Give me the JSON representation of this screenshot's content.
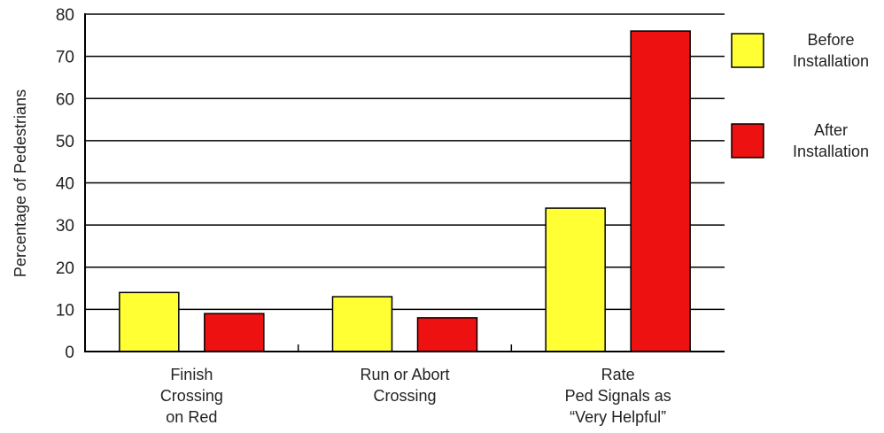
{
  "chart_data": {
    "type": "bar",
    "title": "",
    "xlabel": "",
    "ylabel": "Percentage of Pedestrians",
    "ylim": [
      0,
      80
    ],
    "yticks": [
      0,
      10,
      20,
      30,
      40,
      50,
      60,
      70,
      80
    ],
    "grid": true,
    "legend_position": "right",
    "categories": [
      [
        "Finish",
        "Crossing",
        "on Red"
      ],
      [
        "Run or Abort",
        "Crossing"
      ],
      [
        "Rate",
        "Ped Signals as",
        "“Very Helpful”"
      ]
    ],
    "series": [
      {
        "name": [
          "Before",
          "Installation"
        ],
        "color": "#ffff33",
        "values": [
          14,
          13,
          34
        ]
      },
      {
        "name": [
          "After",
          "Installation"
        ],
        "color": "#ee1111",
        "values": [
          9,
          8,
          76
        ]
      }
    ]
  }
}
